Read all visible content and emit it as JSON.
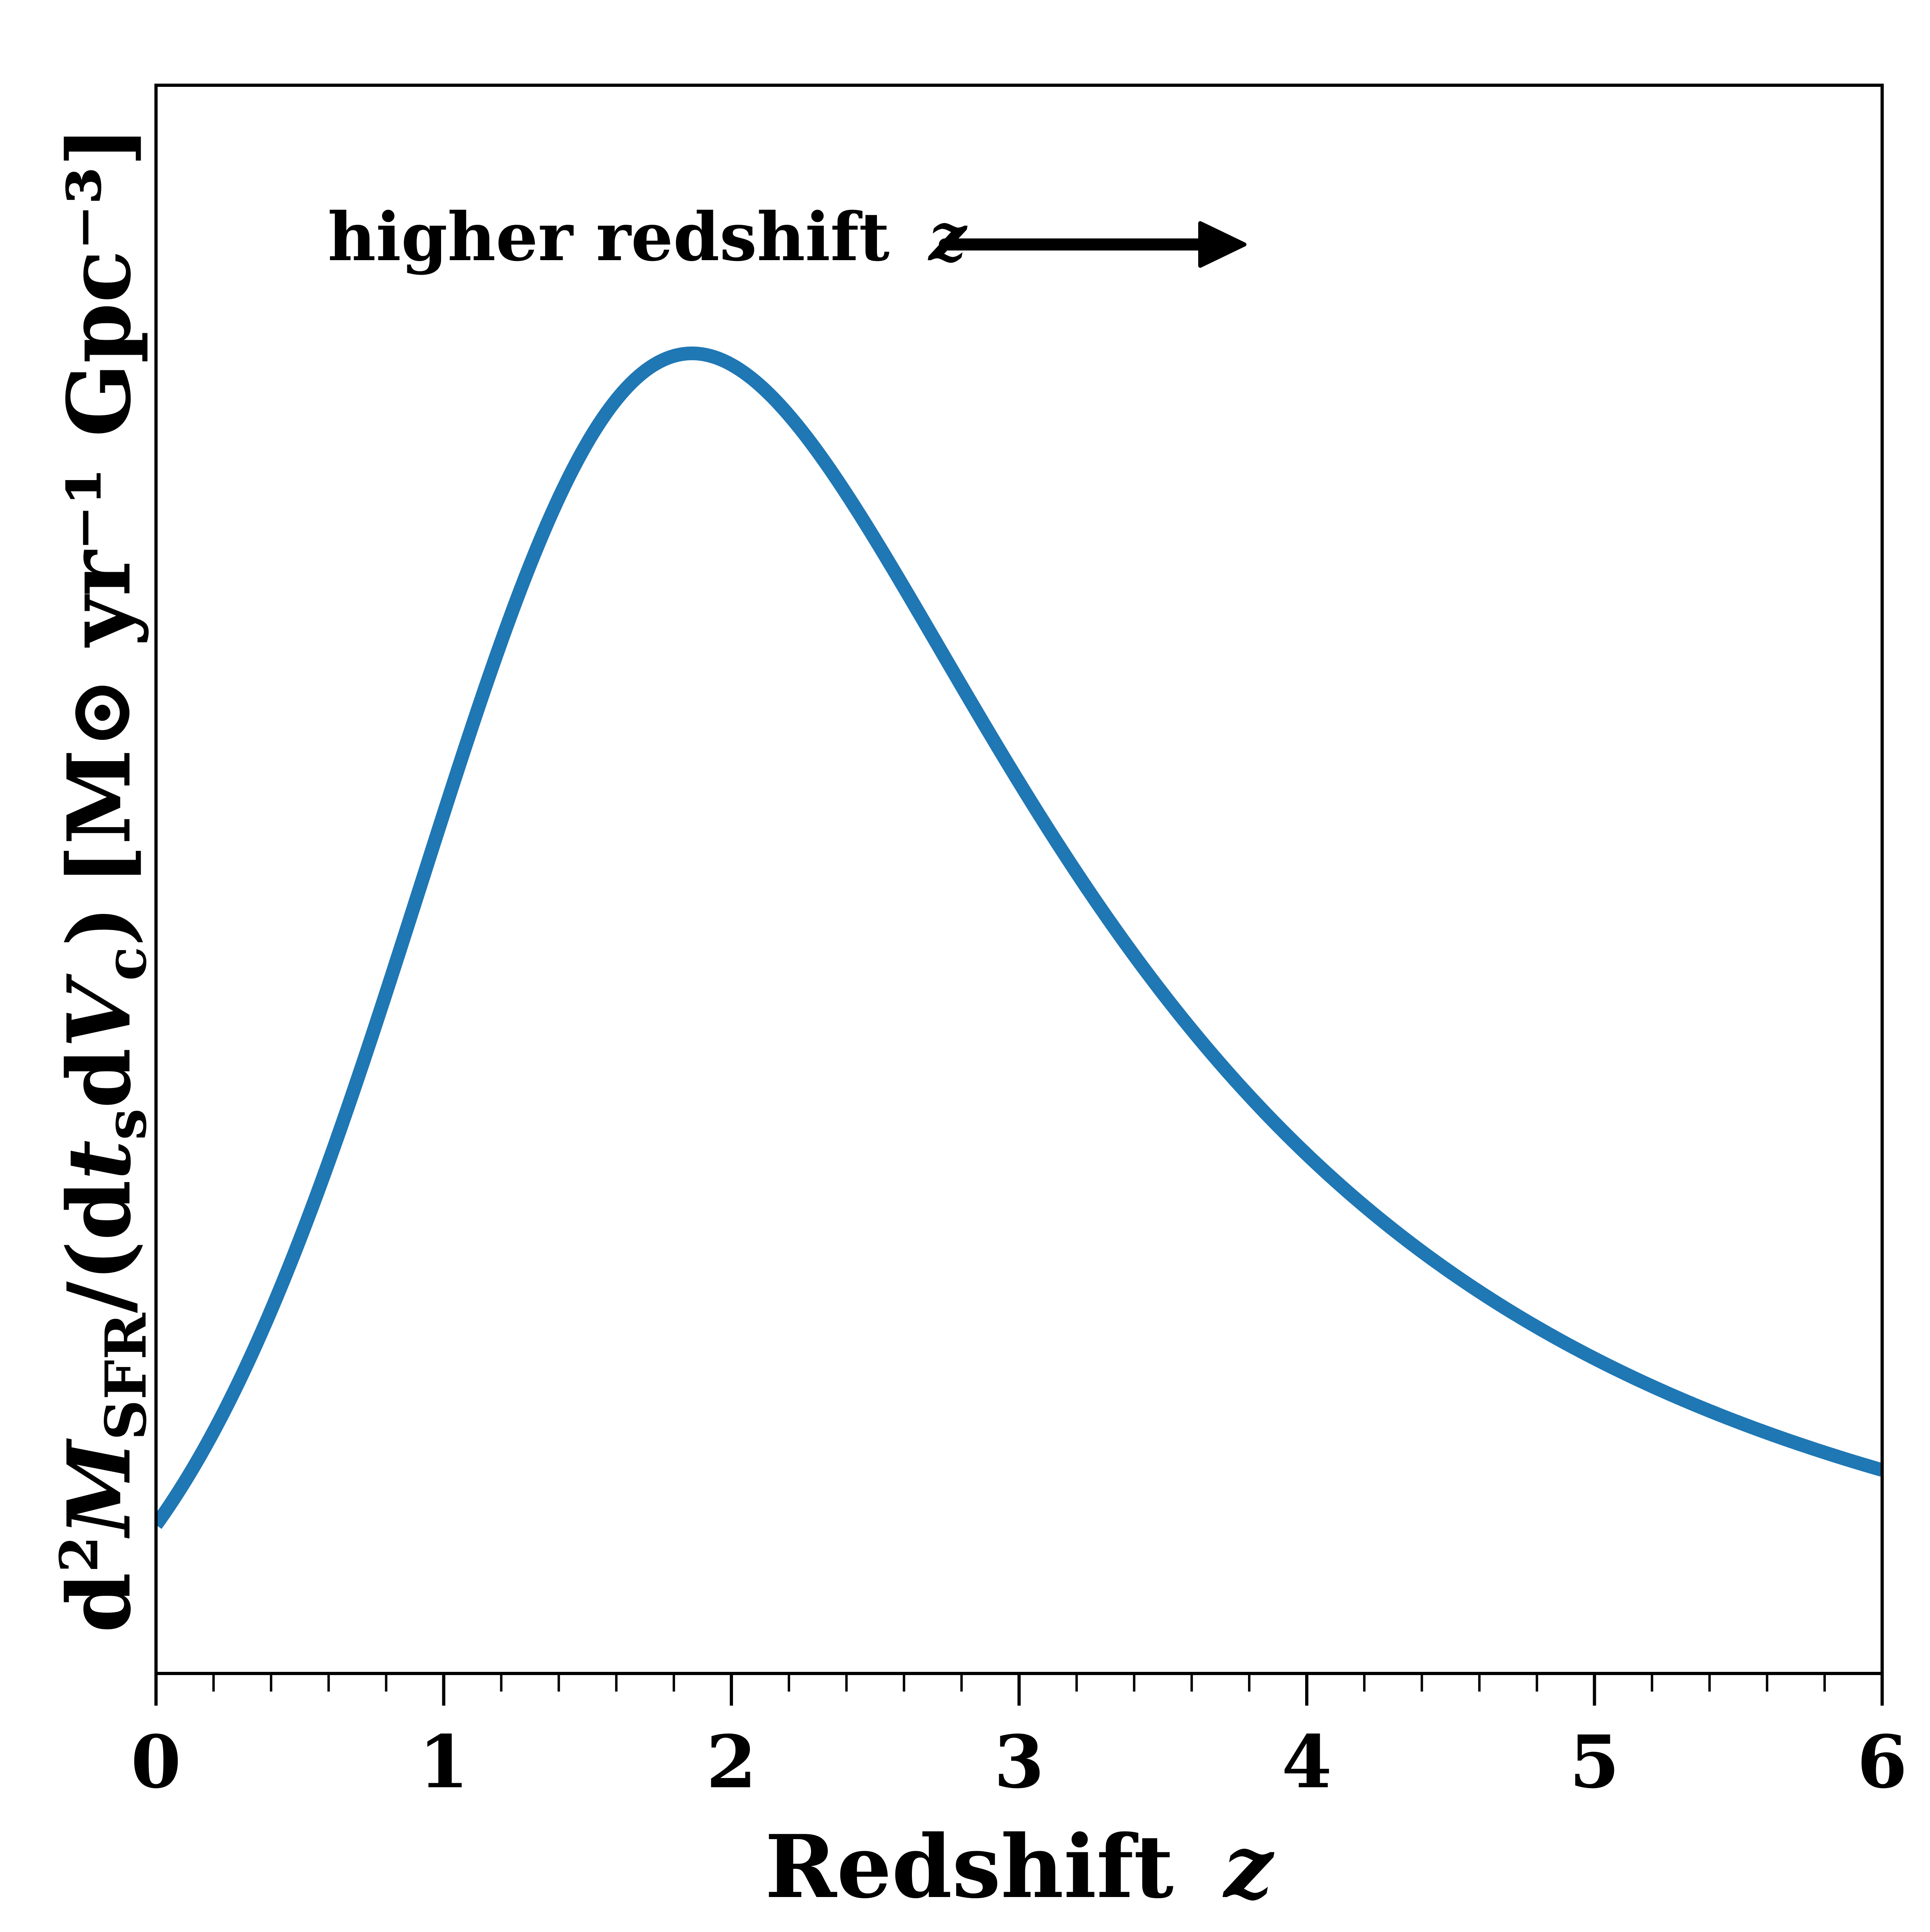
{
  "chart_data": {
    "type": "line",
    "title": "",
    "xlabel": "Redshift",
    "xlabel_var": "z",
    "ylabel": {
      "d_squared": "d",
      "sq": "2",
      "M": "M",
      "sub_sfr": "SFR",
      "over": "/(d",
      "t": "t",
      "sub_s": "s",
      "dV": "d",
      "V": "V",
      "sub_c": "c",
      "close": ")",
      "units": "[M⊙ yr⁻¹ Gpc⁻³]"
    },
    "xlim": [
      0,
      6
    ],
    "xticks": [
      "0",
      "1",
      "2",
      "3",
      "4",
      "5",
      "6"
    ],
    "minor_xtick_step": 0.2,
    "yticks_shown": false,
    "grid": false,
    "series": [
      {
        "color": "#1f77b4",
        "function": "madau_dickinson",
        "x": [
          0,
          0.5,
          1.0,
          1.5,
          1.9,
          2.13,
          2.5,
          3.0,
          3.5,
          4.0,
          4.5,
          5.0,
          5.5,
          6.0
        ],
        "y": [
          0.015,
          0.036,
          0.072,
          0.113,
          0.133,
          0.136,
          0.13,
          0.11,
          0.089,
          0.071,
          0.057,
          0.045,
          0.036,
          0.029
        ]
      }
    ],
    "annotation": {
      "text": "higher redshift",
      "var": "z",
      "arrow": "right"
    }
  }
}
